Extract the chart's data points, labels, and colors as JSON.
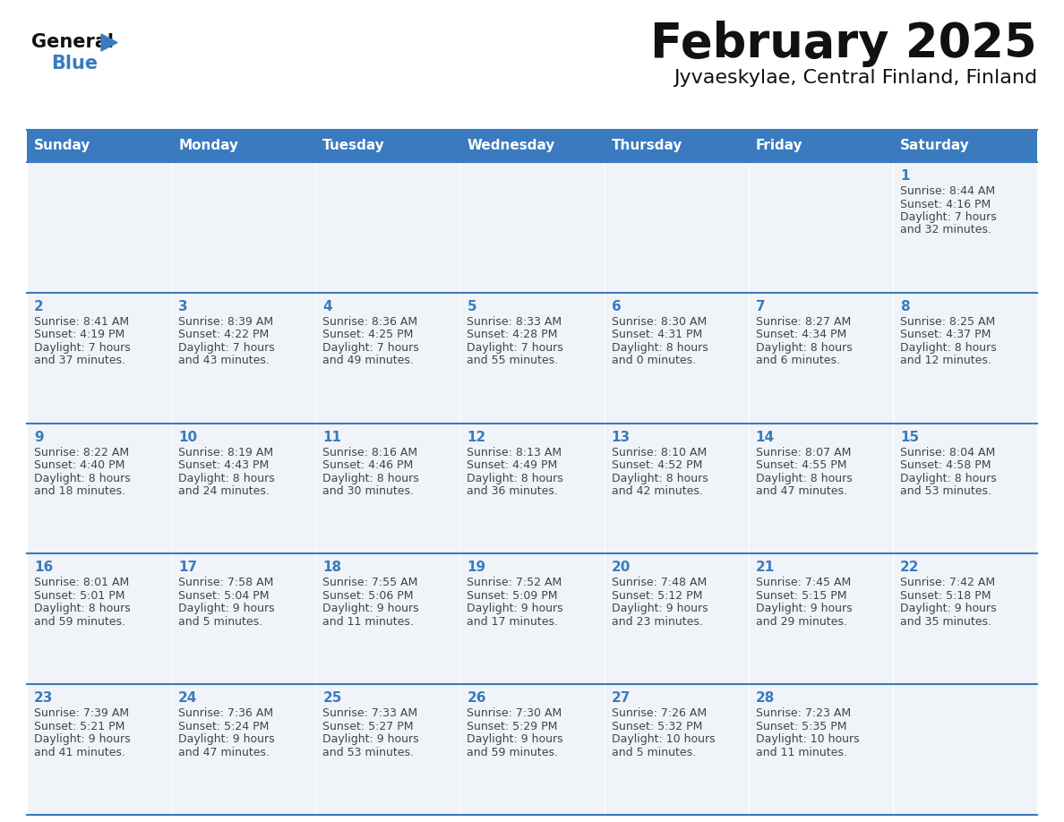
{
  "title": "February 2025",
  "subtitle": "Jyvaeskylae, Central Finland, Finland",
  "header_bg": "#3a7bbf",
  "header_text": "#ffffff",
  "day_names": [
    "Sunday",
    "Monday",
    "Tuesday",
    "Wednesday",
    "Thursday",
    "Friday",
    "Saturday"
  ],
  "cell_bg": "#f0f4f8",
  "border_color": "#3a7bbf",
  "date_color": "#3a7bbf",
  "text_color": "#444444",
  "calendar": [
    [
      null,
      null,
      null,
      null,
      null,
      null,
      {
        "day": "1",
        "sunrise": "8:44 AM",
        "sunset": "4:16 PM",
        "daylight_line1": "7 hours",
        "daylight_line2": "and 32 minutes."
      }
    ],
    [
      {
        "day": "2",
        "sunrise": "8:41 AM",
        "sunset": "4:19 PM",
        "daylight_line1": "7 hours",
        "daylight_line2": "and 37 minutes."
      },
      {
        "day": "3",
        "sunrise": "8:39 AM",
        "sunset": "4:22 PM",
        "daylight_line1": "7 hours",
        "daylight_line2": "and 43 minutes."
      },
      {
        "day": "4",
        "sunrise": "8:36 AM",
        "sunset": "4:25 PM",
        "daylight_line1": "7 hours",
        "daylight_line2": "and 49 minutes."
      },
      {
        "day": "5",
        "sunrise": "8:33 AM",
        "sunset": "4:28 PM",
        "daylight_line1": "7 hours",
        "daylight_line2": "and 55 minutes."
      },
      {
        "day": "6",
        "sunrise": "8:30 AM",
        "sunset": "4:31 PM",
        "daylight_line1": "8 hours",
        "daylight_line2": "and 0 minutes."
      },
      {
        "day": "7",
        "sunrise": "8:27 AM",
        "sunset": "4:34 PM",
        "daylight_line1": "8 hours",
        "daylight_line2": "and 6 minutes."
      },
      {
        "day": "8",
        "sunrise": "8:25 AM",
        "sunset": "4:37 PM",
        "daylight_line1": "8 hours",
        "daylight_line2": "and 12 minutes."
      }
    ],
    [
      {
        "day": "9",
        "sunrise": "8:22 AM",
        "sunset": "4:40 PM",
        "daylight_line1": "8 hours",
        "daylight_line2": "and 18 minutes."
      },
      {
        "day": "10",
        "sunrise": "8:19 AM",
        "sunset": "4:43 PM",
        "daylight_line1": "8 hours",
        "daylight_line2": "and 24 minutes."
      },
      {
        "day": "11",
        "sunrise": "8:16 AM",
        "sunset": "4:46 PM",
        "daylight_line1": "8 hours",
        "daylight_line2": "and 30 minutes."
      },
      {
        "day": "12",
        "sunrise": "8:13 AM",
        "sunset": "4:49 PM",
        "daylight_line1": "8 hours",
        "daylight_line2": "and 36 minutes."
      },
      {
        "day": "13",
        "sunrise": "8:10 AM",
        "sunset": "4:52 PM",
        "daylight_line1": "8 hours",
        "daylight_line2": "and 42 minutes."
      },
      {
        "day": "14",
        "sunrise": "8:07 AM",
        "sunset": "4:55 PM",
        "daylight_line1": "8 hours",
        "daylight_line2": "and 47 minutes."
      },
      {
        "day": "15",
        "sunrise": "8:04 AM",
        "sunset": "4:58 PM",
        "daylight_line1": "8 hours",
        "daylight_line2": "and 53 minutes."
      }
    ],
    [
      {
        "day": "16",
        "sunrise": "8:01 AM",
        "sunset": "5:01 PM",
        "daylight_line1": "8 hours",
        "daylight_line2": "and 59 minutes."
      },
      {
        "day": "17",
        "sunrise": "7:58 AM",
        "sunset": "5:04 PM",
        "daylight_line1": "9 hours",
        "daylight_line2": "and 5 minutes."
      },
      {
        "day": "18",
        "sunrise": "7:55 AM",
        "sunset": "5:06 PM",
        "daylight_line1": "9 hours",
        "daylight_line2": "and 11 minutes."
      },
      {
        "day": "19",
        "sunrise": "7:52 AM",
        "sunset": "5:09 PM",
        "daylight_line1": "9 hours",
        "daylight_line2": "and 17 minutes."
      },
      {
        "day": "20",
        "sunrise": "7:48 AM",
        "sunset": "5:12 PM",
        "daylight_line1": "9 hours",
        "daylight_line2": "and 23 minutes."
      },
      {
        "day": "21",
        "sunrise": "7:45 AM",
        "sunset": "5:15 PM",
        "daylight_line1": "9 hours",
        "daylight_line2": "and 29 minutes."
      },
      {
        "day": "22",
        "sunrise": "7:42 AM",
        "sunset": "5:18 PM",
        "daylight_line1": "9 hours",
        "daylight_line2": "and 35 minutes."
      }
    ],
    [
      {
        "day": "23",
        "sunrise": "7:39 AM",
        "sunset": "5:21 PM",
        "daylight_line1": "9 hours",
        "daylight_line2": "and 41 minutes."
      },
      {
        "day": "24",
        "sunrise": "7:36 AM",
        "sunset": "5:24 PM",
        "daylight_line1": "9 hours",
        "daylight_line2": "and 47 minutes."
      },
      {
        "day": "25",
        "sunrise": "7:33 AM",
        "sunset": "5:27 PM",
        "daylight_line1": "9 hours",
        "daylight_line2": "and 53 minutes."
      },
      {
        "day": "26",
        "sunrise": "7:30 AM",
        "sunset": "5:29 PM",
        "daylight_line1": "9 hours",
        "daylight_line2": "and 59 minutes."
      },
      {
        "day": "27",
        "sunrise": "7:26 AM",
        "sunset": "5:32 PM",
        "daylight_line1": "10 hours",
        "daylight_line2": "and 5 minutes."
      },
      {
        "day": "28",
        "sunrise": "7:23 AM",
        "sunset": "5:35 PM",
        "daylight_line1": "10 hours",
        "daylight_line2": "and 11 minutes."
      },
      null
    ]
  ]
}
